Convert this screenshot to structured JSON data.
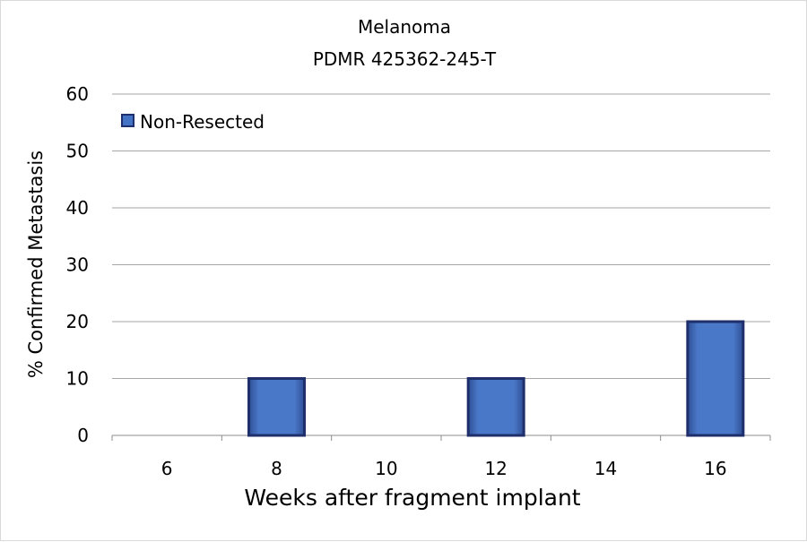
{
  "chart_data": {
    "type": "bar",
    "title": "Melanoma",
    "subtitle": "PDMR 425362-245-T",
    "xlabel": "Weeks after fragment implant",
    "ylabel": "% Confirmed Metastasis",
    "categories": [
      "6",
      "8",
      "10",
      "12",
      "14",
      "16"
    ],
    "series": [
      {
        "name": "Non-Resected",
        "values": [
          0,
          10,
          0,
          10,
          0,
          20
        ]
      }
    ],
    "ylim": [
      0,
      60
    ],
    "yticks": [
      0,
      10,
      20,
      30,
      40,
      50,
      60
    ],
    "grid": true,
    "legend": "top-left",
    "colors": {
      "bar_fill": "#4472c4",
      "bar_edge": "#1f2f6b"
    }
  }
}
